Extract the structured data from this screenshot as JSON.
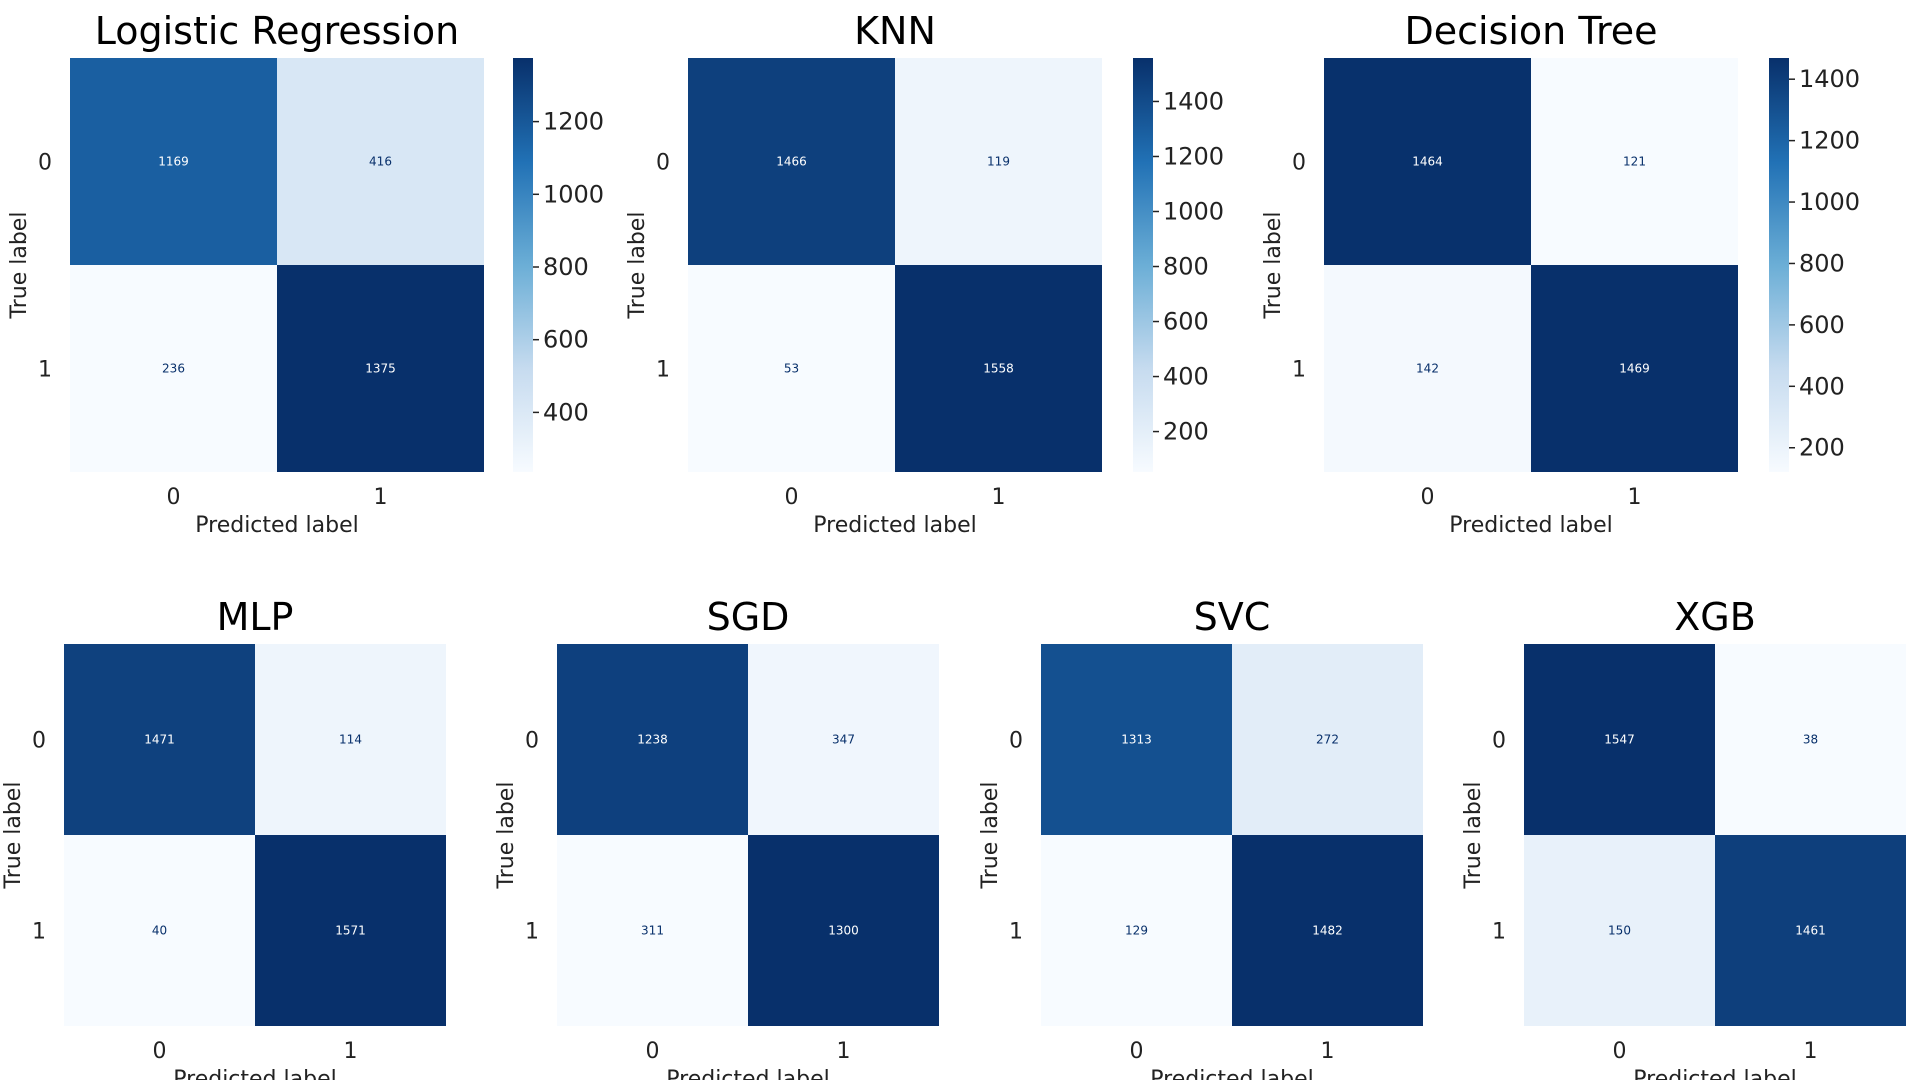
{
  "colors": {
    "low": "#f7fbff",
    "mid_low": "#c6dbef",
    "mid": "#6baed6",
    "mid_high": "#2171b5",
    "high": "#08306b",
    "text_dark": "#08306b",
    "text_light": "#ffffff",
    "axis_text": "#222222"
  },
  "chart_data": [
    {
      "type": "heatmap",
      "title": "Logistic Regression",
      "xlabel": "Predicted label",
      "ylabel": "True label",
      "x_ticks": [
        "0",
        "1"
      ],
      "y_ticks": [
        "0",
        "1"
      ],
      "matrix": [
        [
          1169,
          416
        ],
        [
          236,
          1375
        ]
      ],
      "colorbar": {
        "show": true,
        "range": [
          236,
          1375
        ],
        "ticks": [
          400,
          600,
          800,
          1000,
          1200
        ]
      }
    },
    {
      "type": "heatmap",
      "title": "KNN",
      "xlabel": "Predicted label",
      "ylabel": "True label",
      "x_ticks": [
        "0",
        "1"
      ],
      "y_ticks": [
        "0",
        "1"
      ],
      "matrix": [
        [
          1466,
          119
        ],
        [
          53,
          1558
        ]
      ],
      "colorbar": {
        "show": true,
        "range": [
          53,
          1558
        ],
        "ticks": [
          200,
          400,
          600,
          800,
          1000,
          1200,
          1400
        ]
      }
    },
    {
      "type": "heatmap",
      "title": "Decision Tree",
      "xlabel": "Predicted label",
      "ylabel": "True label",
      "x_ticks": [
        "0",
        "1"
      ],
      "y_ticks": [
        "0",
        "1"
      ],
      "matrix": [
        [
          1464,
          121
        ],
        [
          142,
          1469
        ]
      ],
      "colorbar": {
        "show": true,
        "range": [
          121,
          1469
        ],
        "ticks": [
          200,
          400,
          600,
          800,
          1000,
          1200,
          1400
        ]
      }
    },
    {
      "type": "heatmap",
      "title": "MLP",
      "xlabel": "Predicted label",
      "ylabel": "True label",
      "x_ticks": [
        "0",
        "1"
      ],
      "y_ticks": [
        "0",
        "1"
      ],
      "matrix": [
        [
          1471,
          114
        ],
        [
          40,
          1571
        ]
      ],
      "colorbar": {
        "show": false
      }
    },
    {
      "type": "heatmap",
      "title": "SGD",
      "xlabel": "Predicted label",
      "ylabel": "True label",
      "x_ticks": [
        "0",
        "1"
      ],
      "y_ticks": [
        "0",
        "1"
      ],
      "matrix": [
        [
          1238,
          347
        ],
        [
          311,
          1300
        ]
      ],
      "colorbar": {
        "show": false
      }
    },
    {
      "type": "heatmap",
      "title": "SVC",
      "xlabel": "Predicted label",
      "ylabel": "True label",
      "x_ticks": [
        "0",
        "1"
      ],
      "y_ticks": [
        "0",
        "1"
      ],
      "matrix": [
        [
          1313,
          272
        ],
        [
          129,
          1482
        ]
      ],
      "colorbar": {
        "show": false
      }
    },
    {
      "type": "heatmap",
      "title": "XGB",
      "xlabel": "Predicted label",
      "ylabel": "True label",
      "x_ticks": [
        "0",
        "1"
      ],
      "y_ticks": [
        "0",
        "1"
      ],
      "matrix": [
        [
          1547,
          38
        ],
        [
          150,
          1461
        ]
      ],
      "colorbar": {
        "show": false
      }
    }
  ]
}
